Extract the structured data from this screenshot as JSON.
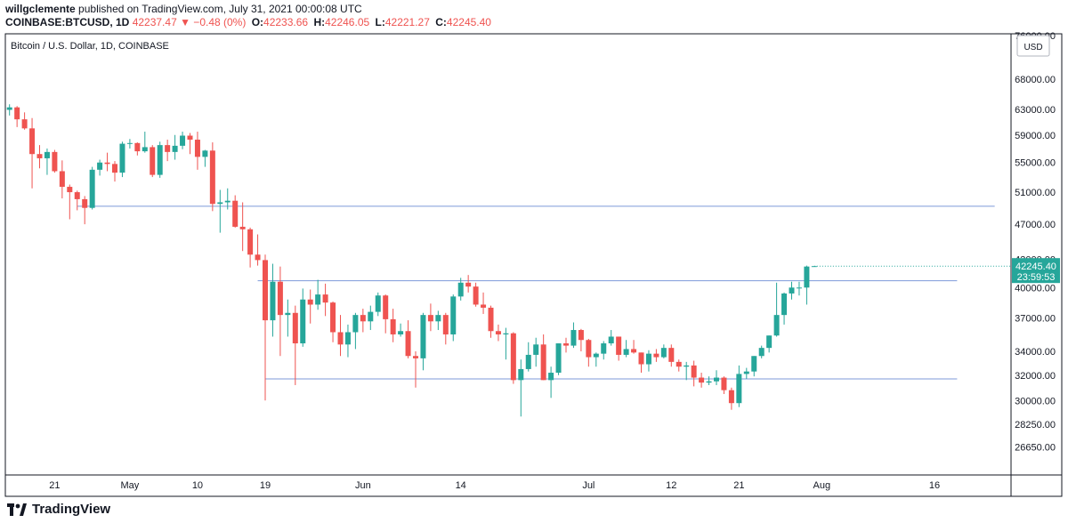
{
  "header": {
    "publisher": "willgclemente",
    "published_text": "published on TradingView.com, July 31, 2021 00:00:08 UTC",
    "symbol_line": "COINBASE:BTCUSD, 1D",
    "last": "42237.47",
    "change": "▼ −0.48 (0%)",
    "o_label": "O:",
    "o": "42233.66",
    "h_label": "H:",
    "h": "42246.05",
    "l_label": "L:",
    "l": "42221.27",
    "c_label": "C:",
    "c": "42245.40"
  },
  "chart_title": "Bitcoin / U.S. Dollar, 1D, COINBASE",
  "currency_badge": "USD",
  "price_label": {
    "value": "42245.40",
    "countdown": "23:59:53"
  },
  "footer": {
    "logo_text": "TradingView"
  },
  "colors": {
    "up": "#26a69a",
    "down": "#ef5350",
    "hline": "#7e9ad9",
    "axis_text": "#131722"
  },
  "chart_data": {
    "type": "candlestick",
    "title": "Bitcoin / U.S. Dollar, 1D, COINBASE",
    "y_scale": "log",
    "ylim": [
      25500,
      76000
    ],
    "y_ticks": [
      "76000.00",
      "68000.00",
      "63000.00",
      "59000.00",
      "55000.00",
      "51000.00",
      "47000.00",
      "43000.00",
      "40000.00",
      "37000.00",
      "34000.00",
      "32000.00",
      "30000.00",
      "28250.00",
      "26650.00"
    ],
    "x_ticks": [
      {
        "label": "21",
        "date": "2021-04-21"
      },
      {
        "label": "May",
        "date": "2021-05-01"
      },
      {
        "label": "10",
        "date": "2021-05-10"
      },
      {
        "label": "19",
        "date": "2021-05-19"
      },
      {
        "label": "Jun",
        "date": "2021-06-01"
      },
      {
        "label": "14",
        "date": "2021-06-14"
      },
      {
        "label": "Jul",
        "date": "2021-07-01"
      },
      {
        "label": "12",
        "date": "2021-07-12"
      },
      {
        "label": "21",
        "date": "2021-07-21"
      },
      {
        "label": "Aug",
        "date": "2021-08-01"
      },
      {
        "label": "16",
        "date": "2021-08-16"
      }
    ],
    "horizontal_lines": [
      {
        "price": 49200,
        "from": "2021-04-24",
        "to": "2021-08-24"
      },
      {
        "price": 40700,
        "from": "2021-05-18",
        "to": "2021-08-19"
      },
      {
        "price": 31700,
        "from": "2021-05-19",
        "to": "2021-08-19"
      }
    ],
    "candles": [
      {
        "date": "2021-04-13",
        "o": 63500,
        "h": 64800,
        "l": 61500,
        "c": 63100
      },
      {
        "date": "2021-04-14",
        "o": 63100,
        "h": 64600,
        "l": 61800,
        "c": 62900
      },
      {
        "date": "2021-04-15",
        "o": 62900,
        "h": 63800,
        "l": 62000,
        "c": 63300
      },
      {
        "date": "2021-04-16",
        "o": 63300,
        "h": 63500,
        "l": 60200,
        "c": 61400
      },
      {
        "date": "2021-04-17",
        "o": 61400,
        "h": 62500,
        "l": 59800,
        "c": 60000
      },
      {
        "date": "2021-04-18",
        "o": 60000,
        "h": 61600,
        "l": 51500,
        "c": 56200
      },
      {
        "date": "2021-04-19",
        "o": 56200,
        "h": 57500,
        "l": 54200,
        "c": 55600
      },
      {
        "date": "2021-04-20",
        "o": 55600,
        "h": 57000,
        "l": 53300,
        "c": 56500
      },
      {
        "date": "2021-04-21",
        "o": 56500,
        "h": 56800,
        "l": 53600,
        "c": 53800
      },
      {
        "date": "2021-04-22",
        "o": 53800,
        "h": 55300,
        "l": 50200,
        "c": 51700
      },
      {
        "date": "2021-04-23",
        "o": 51700,
        "h": 52000,
        "l": 47600,
        "c": 51000
      },
      {
        "date": "2021-04-24",
        "o": 51000,
        "h": 51200,
        "l": 48700,
        "c": 50100
      },
      {
        "date": "2021-04-25",
        "o": 50100,
        "h": 50500,
        "l": 47000,
        "c": 49000
      },
      {
        "date": "2021-04-26",
        "o": 49000,
        "h": 54400,
        "l": 48800,
        "c": 54000
      },
      {
        "date": "2021-04-27",
        "o": 54000,
        "h": 55400,
        "l": 53200,
        "c": 55000
      },
      {
        "date": "2021-04-28",
        "o": 55000,
        "h": 56400,
        "l": 53800,
        "c": 54800
      },
      {
        "date": "2021-04-29",
        "o": 54800,
        "h": 55200,
        "l": 52400,
        "c": 53600
      },
      {
        "date": "2021-04-30",
        "o": 53600,
        "h": 58000,
        "l": 53000,
        "c": 57700
      },
      {
        "date": "2021-05-01",
        "o": 57700,
        "h": 58400,
        "l": 57000,
        "c": 57800
      },
      {
        "date": "2021-05-02",
        "o": 57800,
        "h": 57900,
        "l": 56000,
        "c": 56600
      },
      {
        "date": "2021-05-03",
        "o": 56600,
        "h": 59500,
        "l": 56400,
        "c": 57200
      },
      {
        "date": "2021-05-04",
        "o": 57200,
        "h": 57500,
        "l": 53000,
        "c": 53300
      },
      {
        "date": "2021-05-05",
        "o": 53300,
        "h": 58000,
        "l": 52900,
        "c": 57500
      },
      {
        "date": "2021-05-06",
        "o": 57500,
        "h": 58300,
        "l": 55200,
        "c": 56500
      },
      {
        "date": "2021-05-07",
        "o": 56500,
        "h": 59000,
        "l": 55400,
        "c": 57400
      },
      {
        "date": "2021-05-08",
        "o": 57400,
        "h": 59500,
        "l": 56900,
        "c": 58900
      },
      {
        "date": "2021-05-09",
        "o": 58900,
        "h": 59300,
        "l": 56200,
        "c": 58300
      },
      {
        "date": "2021-05-10",
        "o": 58300,
        "h": 59500,
        "l": 54000,
        "c": 55800
      },
      {
        "date": "2021-05-11",
        "o": 55800,
        "h": 56800,
        "l": 54400,
        "c": 56700
      },
      {
        "date": "2021-05-12",
        "o": 56700,
        "h": 57900,
        "l": 48600,
        "c": 49500
      },
      {
        "date": "2021-05-13",
        "o": 49500,
        "h": 51300,
        "l": 46000,
        "c": 49700
      },
      {
        "date": "2021-05-14",
        "o": 49700,
        "h": 51500,
        "l": 48800,
        "c": 49900
      },
      {
        "date": "2021-05-15",
        "o": 49900,
        "h": 50600,
        "l": 46600,
        "c": 46700
      },
      {
        "date": "2021-05-16",
        "o": 46700,
        "h": 49700,
        "l": 43900,
        "c": 46400
      },
      {
        "date": "2021-05-17",
        "o": 46400,
        "h": 46600,
        "l": 42100,
        "c": 43500
      },
      {
        "date": "2021-05-18",
        "o": 43500,
        "h": 45800,
        "l": 42300,
        "c": 42900
      },
      {
        "date": "2021-05-19",
        "o": 42900,
        "h": 43500,
        "l": 30000,
        "c": 36800
      },
      {
        "date": "2021-05-20",
        "o": 36800,
        "h": 42500,
        "l": 35300,
        "c": 40600
      },
      {
        "date": "2021-05-21",
        "o": 40600,
        "h": 42200,
        "l": 33600,
        "c": 37300
      },
      {
        "date": "2021-05-22",
        "o": 37300,
        "h": 38800,
        "l": 35300,
        "c": 37500
      },
      {
        "date": "2021-05-23",
        "o": 37500,
        "h": 38200,
        "l": 31200,
        "c": 34700
      },
      {
        "date": "2021-05-24",
        "o": 34700,
        "h": 39900,
        "l": 34400,
        "c": 38800
      },
      {
        "date": "2021-05-25",
        "o": 38800,
        "h": 39800,
        "l": 36500,
        "c": 38300
      },
      {
        "date": "2021-05-26",
        "o": 38300,
        "h": 40800,
        "l": 37800,
        "c": 39300
      },
      {
        "date": "2021-05-27",
        "o": 39300,
        "h": 40400,
        "l": 37200,
        "c": 38500
      },
      {
        "date": "2021-05-28",
        "o": 38500,
        "h": 38600,
        "l": 34800,
        "c": 35700
      },
      {
        "date": "2021-05-29",
        "o": 35700,
        "h": 37300,
        "l": 33600,
        "c": 34600
      },
      {
        "date": "2021-05-30",
        "o": 34600,
        "h": 36400,
        "l": 33500,
        "c": 35700
      },
      {
        "date": "2021-05-31",
        "o": 35700,
        "h": 37500,
        "l": 34200,
        "c": 37300
      },
      {
        "date": "2021-06-01",
        "o": 37300,
        "h": 37900,
        "l": 35700,
        "c": 36700
      },
      {
        "date": "2021-06-02",
        "o": 36700,
        "h": 38200,
        "l": 35900,
        "c": 37600
      },
      {
        "date": "2021-06-03",
        "o": 37600,
        "h": 39500,
        "l": 37200,
        "c": 39200
      },
      {
        "date": "2021-06-04",
        "o": 39200,
        "h": 39300,
        "l": 35600,
        "c": 36900
      },
      {
        "date": "2021-06-05",
        "o": 36900,
        "h": 37900,
        "l": 34800,
        "c": 35500
      },
      {
        "date": "2021-06-06",
        "o": 35500,
        "h": 36500,
        "l": 35300,
        "c": 35800
      },
      {
        "date": "2021-06-07",
        "o": 35800,
        "h": 36800,
        "l": 33400,
        "c": 33600
      },
      {
        "date": "2021-06-08",
        "o": 33600,
        "h": 34000,
        "l": 31000,
        "c": 33400
      },
      {
        "date": "2021-06-09",
        "o": 33400,
        "h": 37500,
        "l": 32400,
        "c": 37300
      },
      {
        "date": "2021-06-10",
        "o": 37300,
        "h": 38400,
        "l": 35800,
        "c": 36700
      },
      {
        "date": "2021-06-11",
        "o": 36700,
        "h": 37700,
        "l": 35900,
        "c": 37300
      },
      {
        "date": "2021-06-12",
        "o": 37300,
        "h": 37500,
        "l": 34600,
        "c": 35500
      },
      {
        "date": "2021-06-13",
        "o": 35500,
        "h": 39300,
        "l": 34900,
        "c": 39100
      },
      {
        "date": "2021-06-14",
        "o": 39100,
        "h": 41000,
        "l": 38700,
        "c": 40500
      },
      {
        "date": "2021-06-15",
        "o": 40500,
        "h": 41300,
        "l": 39500,
        "c": 40100
      },
      {
        "date": "2021-06-16",
        "o": 40100,
        "h": 40500,
        "l": 38100,
        "c": 38300
      },
      {
        "date": "2021-06-17",
        "o": 38300,
        "h": 39500,
        "l": 37400,
        "c": 38000
      },
      {
        "date": "2021-06-18",
        "o": 38000,
        "h": 38200,
        "l": 35200,
        "c": 35800
      },
      {
        "date": "2021-06-19",
        "o": 35800,
        "h": 36400,
        "l": 34900,
        "c": 35500
      },
      {
        "date": "2021-06-20",
        "o": 35500,
        "h": 36100,
        "l": 33300,
        "c": 35600
      },
      {
        "date": "2021-06-21",
        "o": 35600,
        "h": 35700,
        "l": 31300,
        "c": 31600
      },
      {
        "date": "2021-06-22",
        "o": 31600,
        "h": 33300,
        "l": 28800,
        "c": 32500
      },
      {
        "date": "2021-06-23",
        "o": 32500,
        "h": 34800,
        "l": 32300,
        "c": 33700
      },
      {
        "date": "2021-06-24",
        "o": 33700,
        "h": 35200,
        "l": 32700,
        "c": 34600
      },
      {
        "date": "2021-06-25",
        "o": 34600,
        "h": 35500,
        "l": 31600,
        "c": 31600
      },
      {
        "date": "2021-06-26",
        "o": 31600,
        "h": 32700,
        "l": 30200,
        "c": 32200
      },
      {
        "date": "2021-06-27",
        "o": 32200,
        "h": 34700,
        "l": 32000,
        "c": 34700
      },
      {
        "date": "2021-06-28",
        "o": 34700,
        "h": 35200,
        "l": 33900,
        "c": 34500
      },
      {
        "date": "2021-06-29",
        "o": 34500,
        "h": 36600,
        "l": 34300,
        "c": 35900
      },
      {
        "date": "2021-06-30",
        "o": 35900,
        "h": 36000,
        "l": 34000,
        "c": 35000
      },
      {
        "date": "2021-07-01",
        "o": 35000,
        "h": 35100,
        "l": 32700,
        "c": 33500
      },
      {
        "date": "2021-07-02",
        "o": 33500,
        "h": 33900,
        "l": 32700,
        "c": 33800
      },
      {
        "date": "2021-07-03",
        "o": 33800,
        "h": 34900,
        "l": 33300,
        "c": 34700
      },
      {
        "date": "2021-07-04",
        "o": 34700,
        "h": 35900,
        "l": 34500,
        "c": 35300
      },
      {
        "date": "2021-07-05",
        "o": 35300,
        "h": 35300,
        "l": 33200,
        "c": 33700
      },
      {
        "date": "2021-07-06",
        "o": 33700,
        "h": 35000,
        "l": 33500,
        "c": 34200
      },
      {
        "date": "2021-07-07",
        "o": 34200,
        "h": 35000,
        "l": 33800,
        "c": 33900
      },
      {
        "date": "2021-07-08",
        "o": 33900,
        "h": 33900,
        "l": 32200,
        "c": 32900
      },
      {
        "date": "2021-07-09",
        "o": 32900,
        "h": 34100,
        "l": 32300,
        "c": 33800
      },
      {
        "date": "2021-07-10",
        "o": 33800,
        "h": 34200,
        "l": 33100,
        "c": 33500
      },
      {
        "date": "2021-07-11",
        "o": 33500,
        "h": 34600,
        "l": 33400,
        "c": 34300
      },
      {
        "date": "2021-07-12",
        "o": 34300,
        "h": 34600,
        "l": 32700,
        "c": 33100
      },
      {
        "date": "2021-07-13",
        "o": 33100,
        "h": 33300,
        "l": 32300,
        "c": 32700
      },
      {
        "date": "2021-07-14",
        "o": 32700,
        "h": 33100,
        "l": 31600,
        "c": 32800
      },
      {
        "date": "2021-07-15",
        "o": 32800,
        "h": 33200,
        "l": 31100,
        "c": 31800
      },
      {
        "date": "2021-07-16",
        "o": 31800,
        "h": 32200,
        "l": 31000,
        "c": 31400
      },
      {
        "date": "2021-07-17",
        "o": 31400,
        "h": 31900,
        "l": 31200,
        "c": 31500
      },
      {
        "date": "2021-07-18",
        "o": 31500,
        "h": 32400,
        "l": 31200,
        "c": 31800
      },
      {
        "date": "2021-07-19",
        "o": 31800,
        "h": 31900,
        "l": 30500,
        "c": 30800
      },
      {
        "date": "2021-07-20",
        "o": 30800,
        "h": 31000,
        "l": 29300,
        "c": 29800
      },
      {
        "date": "2021-07-21",
        "o": 29800,
        "h": 32800,
        "l": 29500,
        "c": 32100
      },
      {
        "date": "2021-07-22",
        "o": 32100,
        "h": 32600,
        "l": 31700,
        "c": 32300
      },
      {
        "date": "2021-07-23",
        "o": 32300,
        "h": 33600,
        "l": 31900,
        "c": 33600
      },
      {
        "date": "2021-07-24",
        "o": 33600,
        "h": 34500,
        "l": 33400,
        "c": 34300
      },
      {
        "date": "2021-07-25",
        "o": 34300,
        "h": 35400,
        "l": 33900,
        "c": 35400
      },
      {
        "date": "2021-07-26",
        "o": 35400,
        "h": 40500,
        "l": 35300,
        "c": 37300
      },
      {
        "date": "2021-07-27",
        "o": 37300,
        "h": 39500,
        "l": 36400,
        "c": 39400
      },
      {
        "date": "2021-07-28",
        "o": 39400,
        "h": 40600,
        "l": 38800,
        "c": 40000
      },
      {
        "date": "2021-07-29",
        "o": 40000,
        "h": 40600,
        "l": 39200,
        "c": 40000
      },
      {
        "date": "2021-07-30",
        "o": 40000,
        "h": 42300,
        "l": 38300,
        "c": 42200
      },
      {
        "date": "2021-07-31",
        "o": 42234,
        "h": 42246,
        "l": 42221,
        "c": 42245
      }
    ]
  }
}
